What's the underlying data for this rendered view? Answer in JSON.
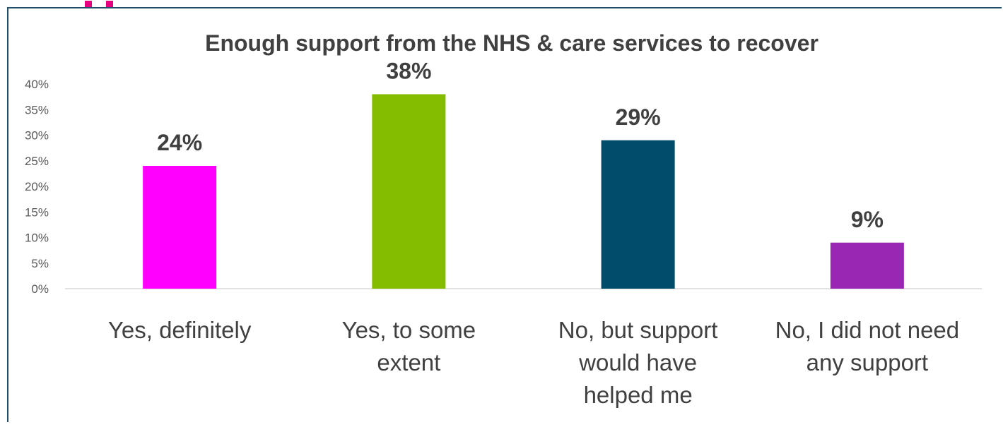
{
  "chart_data": {
    "type": "bar",
    "title": "Enough support from the NHS & care services to recover",
    "categories": [
      "Yes, definitely",
      "Yes, to some extent",
      "No, but support would have helped me",
      "No, I did not need any support"
    ],
    "category_lines": [
      [
        "Yes, definitely"
      ],
      [
        "Yes, to some",
        "extent"
      ],
      [
        "No, but support",
        "would have",
        "helped me"
      ],
      [
        "No, I did not need",
        "any support"
      ]
    ],
    "values": [
      24,
      38,
      29,
      9
    ],
    "value_labels": [
      "24%",
      "38%",
      "29%",
      "9%"
    ],
    "colors": [
      "#ff00ff",
      "#84bd00",
      "#004c6a",
      "#9a27b3"
    ],
    "ylim": [
      0,
      40
    ],
    "yticks": [
      "0%",
      "5%",
      "10%",
      "15%",
      "20%",
      "25%",
      "30%",
      "35%",
      "40%"
    ],
    "xlabel": "",
    "ylabel": "",
    "grid": false,
    "legend": "none"
  }
}
